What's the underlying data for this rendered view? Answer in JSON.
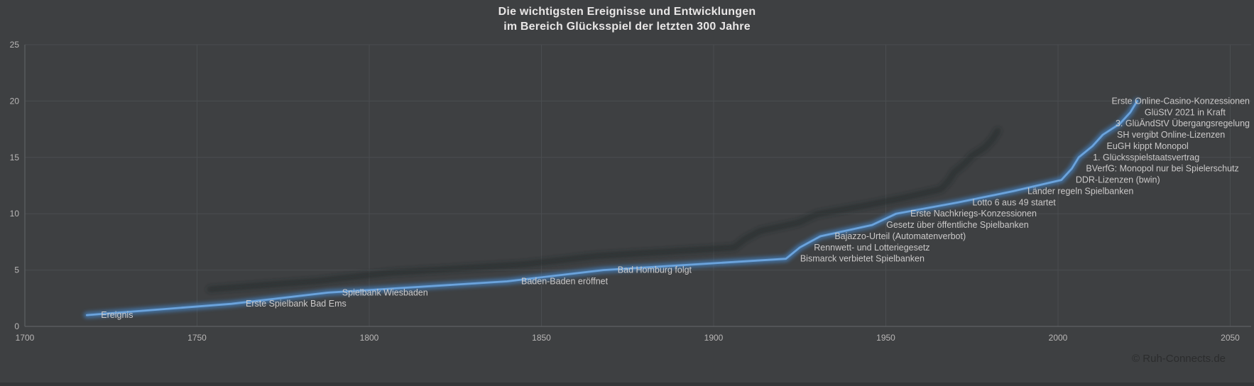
{
  "title": {
    "line1": "Die wichtigsten Ereignisse und Entwicklungen",
    "line2": "im Bereich Glücksspiel der letzten 300 Jahre"
  },
  "watermark": "© Ruh-Connects.de",
  "colors": {
    "background": "#3e4042",
    "gridline": "#4a4d50",
    "axis": "#5e6164",
    "tick_text": "#b9b7b7",
    "label_text": "#cbc9c9",
    "title_text": "#e8e6e6",
    "line_core": "#6ba3dc",
    "line_glow": "#447cb4",
    "line_shadow": "#222426",
    "watermark_text": "#2b2c2d"
  },
  "chart_data": {
    "type": "line",
    "series_name": "Ereignis",
    "title": "Die wichtigsten Ereignisse und Entwicklungen im Bereich Glücksspiel der letzten 300 Jahre",
    "xlabel": "",
    "ylabel": "",
    "xlim": [
      1700,
      2050
    ],
    "ylim": [
      0,
      25
    ],
    "x_ticks": [
      1700,
      1750,
      1800,
      1850,
      1900,
      1950,
      2000,
      2050
    ],
    "y_ticks": [
      0,
      5,
      10,
      15,
      20,
      25
    ],
    "grid": true,
    "legend": "none",
    "points": [
      {
        "year": 1718,
        "value": 1,
        "label": "Ereignis"
      },
      {
        "year": 1760,
        "value": 2,
        "label": "Erste Spielbank Bad Ems"
      },
      {
        "year": 1788,
        "value": 3,
        "label": "Spielbank Wiesbaden"
      },
      {
        "year": 1840,
        "value": 4,
        "label": "Baden-Baden eröffnet"
      },
      {
        "year": 1868,
        "value": 5,
        "label": "Bad Homburg folgt"
      },
      {
        "year": 1921,
        "value": 6,
        "label": "Bismarck verbietet Spielbanken"
      },
      {
        "year": 1925,
        "value": 7,
        "label": "Rennwett- und Lotteriegesetz"
      },
      {
        "year": 1931,
        "value": 8,
        "label": "Bajazzo-Urteil (Automatenverbot)"
      },
      {
        "year": 1946,
        "value": 9,
        "label": "Gesetz über öffentliche Spielbanken"
      },
      {
        "year": 1953,
        "value": 10,
        "label": "Erste Nachkriegs-Konzessionen"
      },
      {
        "year": 1971,
        "value": 11,
        "label": "Lotto 6 aus 49 startet"
      },
      {
        "year": 1987,
        "value": 12,
        "label": "Länder regeln Spielbanken"
      },
      {
        "year": 2001,
        "value": 13,
        "label": "DDR-Lizenzen (bwin)"
      },
      {
        "year": 2004,
        "value": 14,
        "label": "BVerfG: Monopol nur bei Spielerschutz"
      },
      {
        "year": 2006,
        "value": 15,
        "label": "1. Glücksspielstaatsvertrag"
      },
      {
        "year": 2010,
        "value": 16,
        "label": "EuGH kippt Monopol"
      },
      {
        "year": 2013,
        "value": 17,
        "label": "SH vergibt Online-Lizenzen"
      },
      {
        "year": 2018,
        "value": 18,
        "label": "3. GlüÄndStV Übergangsregelung"
      },
      {
        "year": 2021,
        "value": 19,
        "label": "GlüStV 2021 in Kraft"
      },
      {
        "year": 2023,
        "value": 20,
        "label": "Erste Online-Casino-Konzessionen"
      }
    ]
  }
}
